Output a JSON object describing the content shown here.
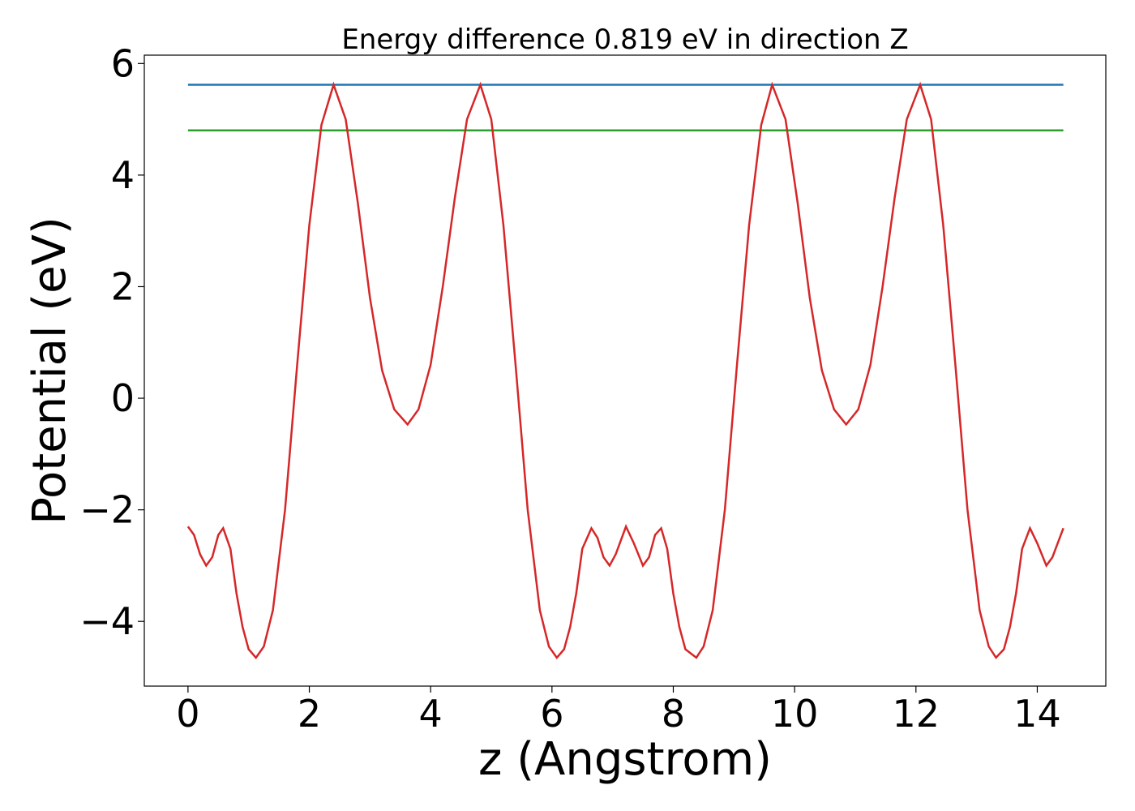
{
  "chart_data": {
    "type": "line",
    "title": "Energy difference 0.819 eV in direction Z",
    "xlabel": "z (Angstrom)",
    "ylabel": "Potential (eV)",
    "xlim": [
      -0.72,
      15.13
    ],
    "ylim": [
      -5.16,
      6.15
    ],
    "xticks": [
      0,
      2,
      4,
      6,
      8,
      10,
      12,
      14
    ],
    "yticks": [
      {
        "value": -4,
        "label": "−4"
      },
      {
        "value": -2,
        "label": "−2"
      },
      0,
      2,
      4,
      6
    ],
    "series": [
      {
        "color": "#1f77b4",
        "x": [
          0,
          14.43
        ],
        "values": [
          5.62,
          5.62
        ]
      },
      {
        "color": "#2ca02c",
        "x": [
          0,
          14.43
        ],
        "values": [
          4.801,
          4.801
        ]
      },
      {
        "color": "#d62728",
        "x": [
          0,
          0.1,
          0.2,
          0.3,
          0.4,
          0.5,
          0.58,
          0.7,
          0.8,
          0.9,
          1.0,
          1.12,
          1.25,
          1.4,
          1.6,
          1.8,
          2.0,
          2.2,
          2.4,
          2.6,
          2.8,
          3.0,
          3.2,
          3.4,
          3.62,
          3.8,
          4.0,
          4.2,
          4.4,
          4.6,
          4.82,
          5.0,
          5.2,
          5.4,
          5.6,
          5.8,
          5.95,
          6.08,
          6.2,
          6.3,
          6.4,
          6.5,
          6.65,
          6.75,
          6.85,
          6.95,
          7.05,
          7.22,
          7.35,
          7.5,
          7.6,
          7.7,
          7.8,
          7.9,
          8.0,
          8.1,
          8.2,
          8.38,
          8.5,
          8.65,
          8.85,
          9.05,
          9.25,
          9.45,
          9.63,
          9.85,
          10.05,
          10.25,
          10.45,
          10.65,
          10.85,
          11.05,
          11.25,
          11.45,
          11.65,
          11.85,
          12.07,
          12.25,
          12.45,
          12.65,
          12.85,
          13.05,
          13.2,
          13.32,
          13.45,
          13.55,
          13.65,
          13.75,
          13.88,
          14.0,
          14.15,
          14.25,
          14.43
        ],
        "values": [
          -2.3,
          -2.45,
          -2.8,
          -3.0,
          -2.85,
          -2.45,
          -2.33,
          -2.7,
          -3.5,
          -4.1,
          -4.5,
          -4.65,
          -4.45,
          -3.8,
          -2.0,
          0.6,
          3.1,
          4.9,
          5.62,
          5.0,
          3.5,
          1.8,
          0.5,
          -0.2,
          -0.47,
          -0.2,
          0.6,
          2.0,
          3.6,
          5.0,
          5.62,
          5.0,
          3.1,
          0.6,
          -2.0,
          -3.8,
          -4.45,
          -4.65,
          -4.5,
          -4.1,
          -3.5,
          -2.7,
          -2.33,
          -2.5,
          -2.85,
          -3.0,
          -2.8,
          -2.3,
          -2.6,
          -3.0,
          -2.85,
          -2.45,
          -2.33,
          -2.7,
          -3.5,
          -4.1,
          -4.5,
          -4.65,
          -4.45,
          -3.8,
          -2.0,
          0.6,
          3.1,
          4.9,
          5.62,
          5.0,
          3.5,
          1.8,
          0.5,
          -0.2,
          -0.47,
          -0.2,
          0.6,
          2.0,
          3.6,
          5.0,
          5.62,
          5.0,
          3.1,
          0.6,
          -2.0,
          -3.8,
          -4.45,
          -4.65,
          -4.5,
          -4.1,
          -3.5,
          -2.7,
          -2.33,
          -2.6,
          -3.0,
          -2.85,
          -2.33
        ]
      }
    ]
  }
}
